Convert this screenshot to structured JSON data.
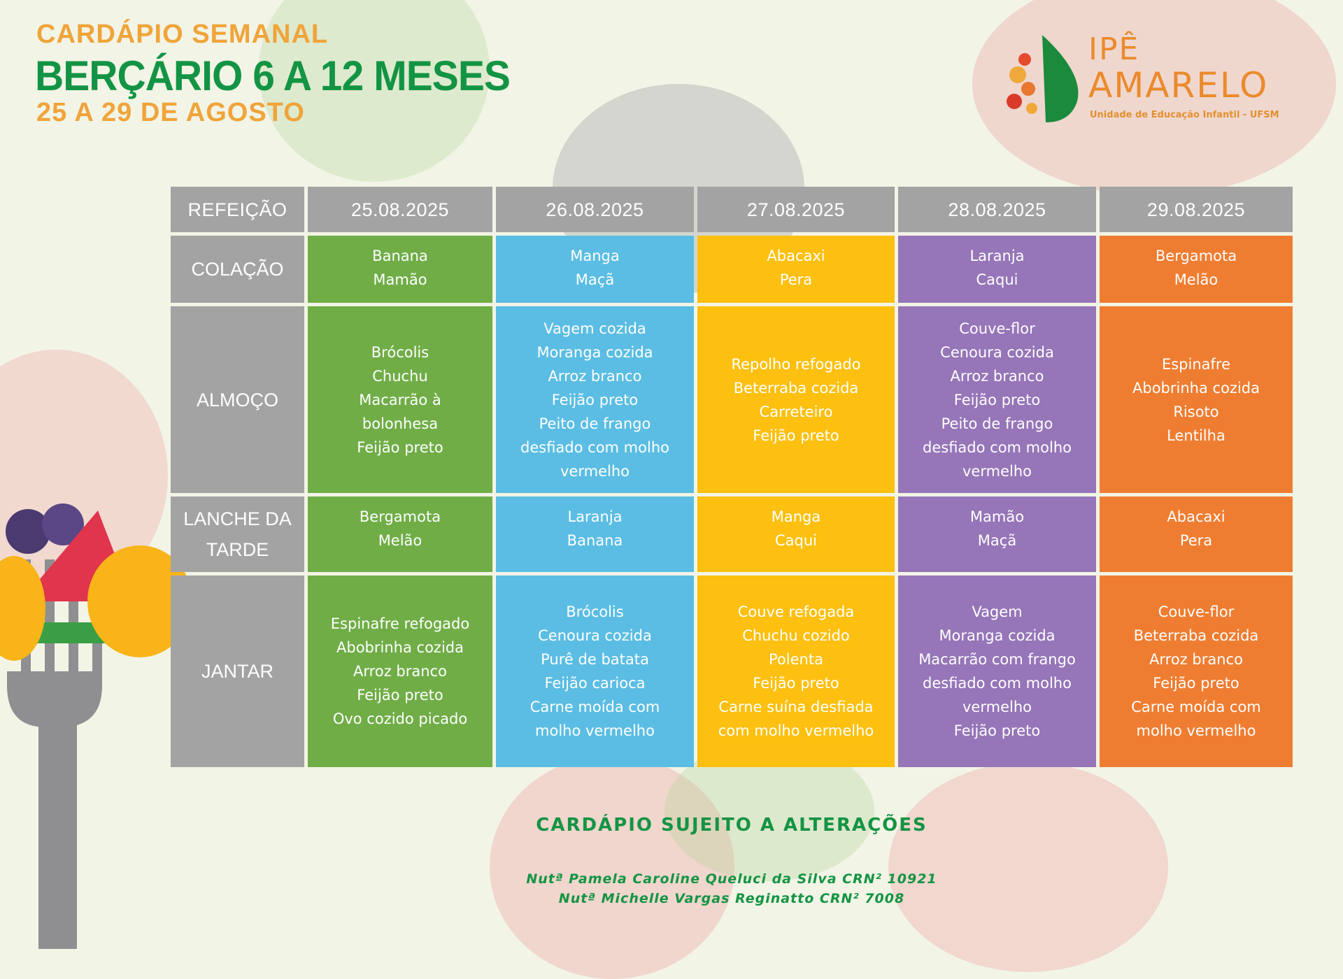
{
  "header": {
    "line1": "CARDÁPIO SEMANAL",
    "line2": "BERÇÁRIO 6 A 12 MESES",
    "line3": "25 A 29 DE AGOSTO"
  },
  "logo": {
    "line1": "IPÊ",
    "line2": "AMARELO",
    "subtitle": "Unidade de Educação Infantil - UFSM"
  },
  "table": {
    "corner": "REFEIÇÃO",
    "meals": [
      "COLAÇÃO",
      "ALMOÇO",
      "LANCHE DA\nTARDE",
      "JANTAR"
    ],
    "days": [
      {
        "date": "25.08.2025",
        "color": "#70ad47",
        "items": [
          "Banana\nMamão",
          "Brócolis\nChuchu\nMacarrão à\nbolonhesa\nFeijão preto",
          "Bergamota\nMelão",
          "Espinafre refogado\nAbobrinha cozida\nArroz branco\nFeijão preto\nOvo cozido picado"
        ]
      },
      {
        "date": "26.08.2025",
        "color": "#5bbde3",
        "items": [
          "Manga\nMaçã",
          "Vagem cozida\nMoranga cozida\nArroz branco\nFeijão preto\nPeito de frango\ndesfiado com molho\nvermelho",
          "Laranja\nBanana",
          "Brócolis\nCenoura cozida\nPurê de batata\nFeijão carioca\nCarne moída com\nmolho vermelho"
        ]
      },
      {
        "date": "27.08.2025",
        "color": "#fdc010",
        "items": [
          "Abacaxi\nPera",
          "Repolho refogado\nBeterraba cozida\nCarreteiro\nFeijão preto",
          "Manga\nCaqui",
          "Couve refogada\nChuchu cozido\nPolenta\nFeijão preto\nCarne suína desfiada\ncom molho vermelho"
        ]
      },
      {
        "date": "28.08.2025",
        "color": "#9675b8",
        "items": [
          "Laranja\nCaqui",
          "Couve-flor\nCenoura cozida\nArroz branco\nFeijão preto\nPeito de frango\ndesfiado com molho\nvermelho",
          "Mamão\nMaçã",
          "Vagem\nMoranga cozida\nMacarrão com frango\ndesfiado com molho\nvermelho\nFeijão preto"
        ]
      },
      {
        "date": "29.08.2025",
        "color": "#ef7d31",
        "items": [
          "Bergamota\nMelão",
          "Espinafre\nAbobrinha cozida\nRisoto\nLentilha",
          "Abacaxi\nPera",
          "Couve-flor\nBeterraba cozida\nArroz branco\nFeijão preto\nCarne moída com\nmolho vermelho"
        ]
      }
    ]
  },
  "footer": {
    "notice": "CARDÁPIO SUJEITO A ALTERAÇÕES",
    "nutritionist1": "Nutª Pamela Caroline Queluci da Silva CRN² 10921",
    "nutritionist2": "Nutª Michelle Vargas Reginatto CRN² 7008"
  }
}
